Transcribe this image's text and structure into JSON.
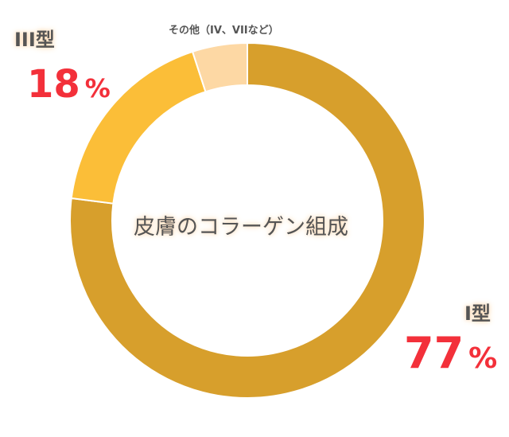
{
  "chart_data": {
    "type": "pie",
    "variant": "donut",
    "title": "皮膚のコラーゲン組成",
    "slices": [
      {
        "label": "I型",
        "value": 77,
        "display": "77",
        "color": "#D79F2C"
      },
      {
        "label": "III型",
        "value": 18,
        "display": "18",
        "color": "#FBBE38"
      },
      {
        "label": "その他（IV、VIIなど）",
        "value": 5,
        "color": "#FDD8A4"
      }
    ],
    "unit": "%",
    "start": "top",
    "direction": "clockwise"
  }
}
